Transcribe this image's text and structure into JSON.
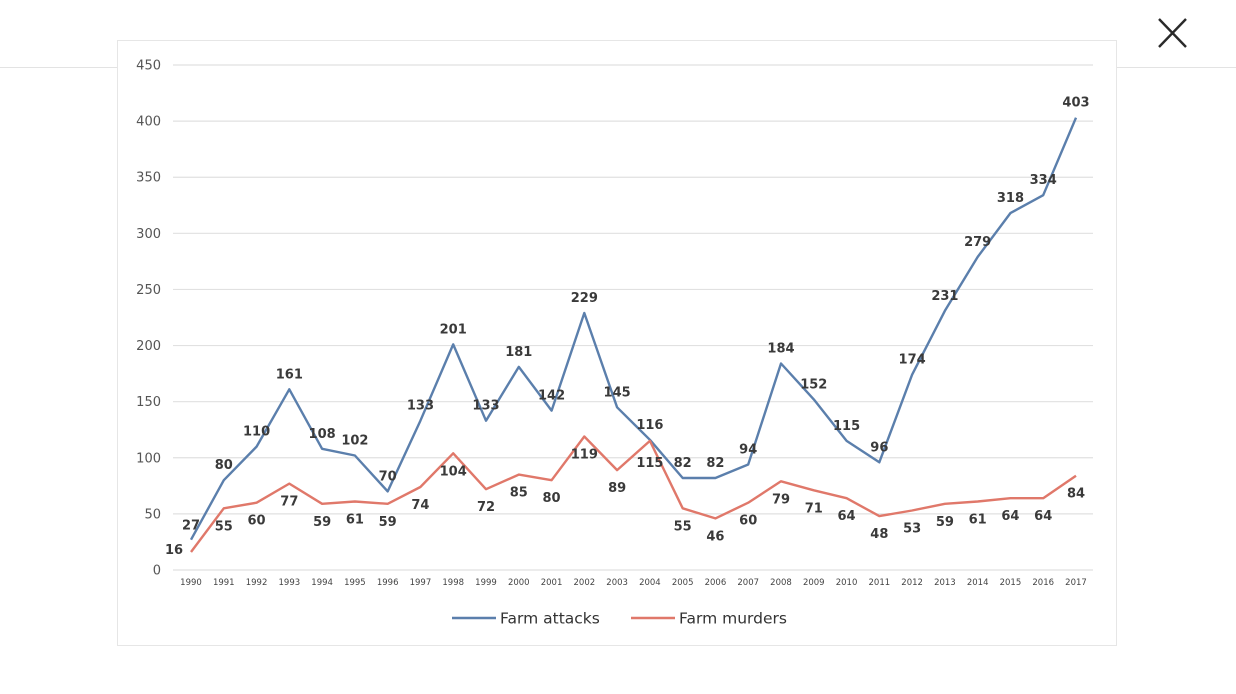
{
  "close_icon": "close-icon",
  "chart_data": {
    "type": "line",
    "title": "",
    "xlabel": "",
    "ylabel": "",
    "ylim": [
      0,
      450
    ],
    "yticks": [
      0,
      50,
      100,
      150,
      200,
      250,
      300,
      350,
      400,
      450
    ],
    "grid": true,
    "legend_position": "bottom",
    "x": [
      "1990",
      "1991",
      "1992",
      "1993",
      "1994",
      "1995",
      "1996",
      "1997",
      "1998",
      "1999",
      "2000",
      "2001",
      "2002",
      "2003",
      "2004",
      "2005",
      "2006",
      "2007",
      "2008",
      "2009",
      "2010",
      "2011",
      "2012",
      "2013",
      "2014",
      "2015",
      "2016",
      "2017"
    ],
    "series": [
      {
        "name": "Farm attacks",
        "color": "#5b7fac",
        "values": [
          27,
          80,
          110,
          161,
          108,
          102,
          70,
          133,
          201,
          133,
          181,
          142,
          229,
          145,
          116,
          82,
          82,
          94,
          184,
          152,
          115,
          96,
          174,
          231,
          279,
          318,
          334,
          403
        ]
      },
      {
        "name": "Farm murders",
        "color": "#e0786a",
        "values": [
          16,
          55,
          60,
          77,
          59,
          61,
          59,
          74,
          104,
          72,
          85,
          80,
          119,
          89,
          115,
          55,
          46,
          60,
          79,
          71,
          64,
          48,
          53,
          59,
          61,
          64,
          64,
          84
        ]
      }
    ]
  }
}
